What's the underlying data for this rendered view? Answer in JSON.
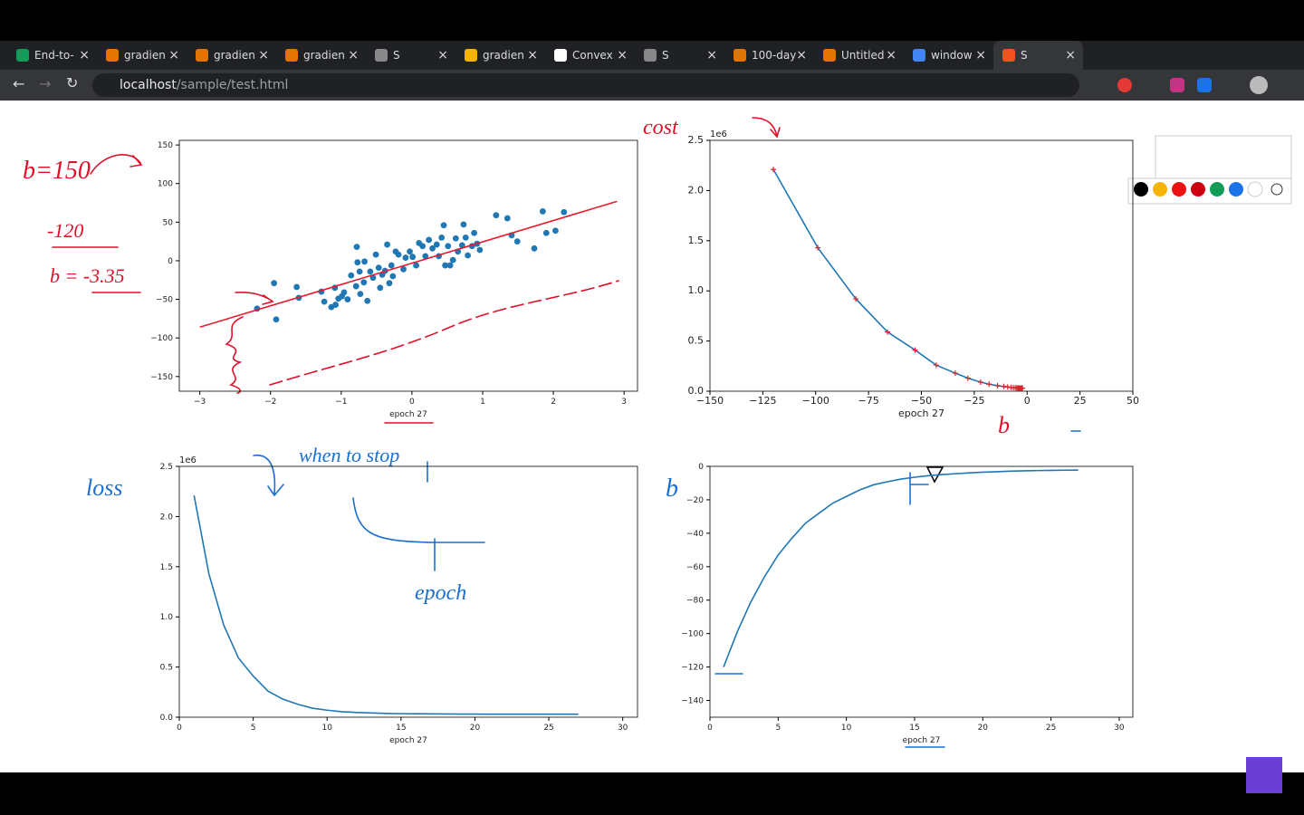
{
  "browser": {
    "tabs": [
      "End-to-",
      "gradien",
      "gradien",
      "gradien",
      "S",
      "gradien",
      "Convex",
      "S",
      "100-day",
      "Untitled",
      "window",
      "S"
    ],
    "url_host": "localhost",
    "url_path": "/sample/test.html"
  },
  "annotations": [
    {
      "text": "b=150",
      "color": "#e0102a"
    },
    {
      "text": "-120",
      "color": "#e0102a"
    },
    {
      "text": "b = -3.35",
      "color": "#e0102a"
    },
    {
      "text": "cost",
      "color": "#e0102a"
    },
    {
      "text": "loss",
      "color": "#1a6fd1"
    },
    {
      "text": "when to stop",
      "color": "#1a6fd1"
    },
    {
      "text": "epoch",
      "color": "#1a6fd1"
    },
    {
      "text": "b",
      "color": "#e0102a"
    },
    {
      "text": "b",
      "color": "#1a6fd1"
    }
  ],
  "chart_data": [
    {
      "type": "scatter",
      "xlabel": "epoch 27",
      "xlim": [
        -3.29,
        3.19
      ],
      "ylim": [
        -169,
        156
      ],
      "xticks": [
        {
          "value": -3,
          "label": "−3"
        },
        {
          "value": -2,
          "label": "−2"
        },
        {
          "value": -1,
          "label": "−1"
        },
        0,
        1,
        2,
        3
      ],
      "yticks": [
        {
          "value": -150,
          "label": "−150"
        },
        {
          "value": -100,
          "label": "−100"
        },
        {
          "value": -50,
          "label": "−50"
        },
        0,
        50,
        100,
        150
      ],
      "series": [
        {
          "color": "#1f77b4",
          "marker": "circle",
          "line": false,
          "x": [
            -1.95,
            -1.92,
            -1.63,
            -1.6,
            -1.28,
            -1.24,
            -1.14,
            -1.09,
            -1.08,
            -1.04,
            -0.99,
            -0.96,
            -0.91,
            -0.86,
            -0.78,
            -0.77,
            -0.79,
            -0.74,
            -0.73,
            -0.68,
            -0.67,
            -0.63,
            -0.59,
            -0.55,
            -0.51,
            -0.47,
            -0.45,
            -0.42,
            -0.38,
            -0.35,
            -0.32,
            -0.29,
            -0.27,
            -0.23,
            -0.19,
            -0.12,
            -0.09,
            -0.03,
            0.01,
            0.06,
            0.1,
            0.15,
            0.19,
            0.24,
            0.29,
            0.35,
            0.38,
            0.42,
            0.45,
            0.47,
            0.51,
            0.54,
            0.58,
            0.62,
            0.65,
            0.71,
            0.73,
            0.76,
            0.79,
            0.85,
            0.88,
            0.92,
            0.96,
            1.19,
            1.35,
            1.41,
            1.49,
            1.73,
            1.85,
            1.9,
            2.03,
            2.15,
            -2.19
          ],
          "values": [
            -29,
            -76,
            -34,
            -48,
            -40,
            -53,
            -60,
            -35,
            -57,
            -49,
            -46,
            -41,
            -50,
            -19,
            18,
            -2,
            -33,
            -14,
            -43,
            -28,
            -1,
            -52,
            -14,
            -22,
            8,
            -9,
            -35,
            -18,
            -13,
            21,
            -29,
            -6,
            -20,
            12,
            8,
            -11,
            4,
            12,
            5,
            -6,
            23,
            19,
            6,
            27,
            16,
            21,
            6,
            30,
            46,
            -6,
            19,
            -6,
            1,
            29,
            12,
            20,
            47,
            30,
            7,
            19,
            36,
            22,
            14,
            59,
            55,
            33,
            25,
            16,
            64,
            36,
            39,
            63,
            -62
          ]
        },
        {
          "color": "#e8192c",
          "marker": "none",
          "line": true,
          "x": [
            -3,
            2.9
          ],
          "values": [
            -86,
            77
          ]
        }
      ]
    },
    {
      "type": "line",
      "xlabel": "epoch 27",
      "y_offset_label": "1e6",
      "xlim": [
        -150,
        50
      ],
      "ylim": [
        0,
        2.5
      ],
      "xticks": [
        {
          "value": -150,
          "label": "−150"
        },
        {
          "value": -125,
          "label": "−125"
        },
        {
          "value": -100,
          "label": "−100"
        },
        {
          "value": -75,
          "label": "−75"
        },
        {
          "value": -50,
          "label": "−50"
        },
        {
          "value": -25,
          "label": "−25"
        },
        0,
        25,
        50
      ],
      "yticks": [
        {
          "value": 0,
          "label": "0.0"
        },
        0.5,
        {
          "value": 1,
          "label": "1.0"
        },
        1.5,
        {
          "value": 2,
          "label": "2.0"
        },
        2.5
      ],
      "series": [
        {
          "color": "#1f77b4",
          "marker": "plus",
          "marker_color": "#d62728",
          "line": true,
          "x": [
            -120,
            -99,
            -81,
            -66,
            -53,
            -43,
            -34,
            -28,
            -22,
            -18,
            -14,
            -11,
            -9.2,
            -7.6,
            -6.5,
            -5.6,
            -4.9,
            -4.4,
            -3.9,
            -3.5,
            -3.2,
            -2.9,
            -2.7,
            -2.5,
            -2.4,
            -2.3,
            -2.2
          ],
          "values": [
            2.21,
            1.43,
            0.92,
            0.59,
            0.41,
            0.26,
            0.18,
            0.13,
            0.09,
            0.07,
            0.055,
            0.047,
            0.042,
            0.038,
            0.035,
            0.034,
            0.033,
            0.032,
            0.031,
            0.031,
            0.03,
            0.03,
            0.03,
            0.03,
            0.03,
            0.03,
            0.03
          ]
        }
      ]
    },
    {
      "type": "line",
      "xlabel": "epoch 27",
      "y_offset_label": "1e6",
      "xlim": [
        0,
        31
      ],
      "ylim": [
        0,
        2.5
      ],
      "xticks": [
        0,
        5,
        10,
        15,
        20,
        25,
        30
      ],
      "yticks": [
        {
          "value": 0,
          "label": "0.0"
        },
        0.5,
        {
          "value": 1,
          "label": "1.0"
        },
        1.5,
        {
          "value": 2,
          "label": "2.0"
        },
        2.5
      ],
      "series": [
        {
          "color": "#1f77b4",
          "marker": "none",
          "line": true,
          "x": [
            1,
            2,
            3,
            4,
            5,
            6,
            7,
            8,
            9,
            10,
            11,
            12,
            13,
            14,
            15,
            16,
            17,
            18,
            19,
            20,
            21,
            22,
            23,
            24,
            25,
            26,
            27
          ],
          "values": [
            2.21,
            1.43,
            0.92,
            0.59,
            0.41,
            0.26,
            0.18,
            0.13,
            0.09,
            0.07,
            0.055,
            0.047,
            0.042,
            0.038,
            0.035,
            0.034,
            0.033,
            0.032,
            0.031,
            0.031,
            0.03,
            0.03,
            0.03,
            0.03,
            0.03,
            0.03,
            0.03
          ]
        }
      ]
    },
    {
      "type": "line",
      "xlabel": "epoch 27",
      "xlim": [
        0,
        31
      ],
      "ylim": [
        -150,
        0
      ],
      "xticks": [
        0,
        5,
        10,
        15,
        20,
        25,
        30
      ],
      "yticks": [
        0,
        {
          "value": -20,
          "label": "−20"
        },
        {
          "value": -40,
          "label": "−40"
        },
        {
          "value": -60,
          "label": "−60"
        },
        {
          "value": -80,
          "label": "−80"
        },
        {
          "value": -100,
          "label": "−100"
        },
        {
          "value": -120,
          "label": "−120"
        },
        {
          "value": -140,
          "label": "−140"
        }
      ],
      "series": [
        {
          "color": "#1f77b4",
          "marker": "none",
          "line": true,
          "x": [
            1,
            2,
            3,
            4,
            5,
            6,
            7,
            8,
            9,
            10,
            11,
            12,
            13,
            14,
            15,
            16,
            17,
            18,
            19,
            20,
            21,
            22,
            23,
            24,
            25,
            26,
            27
          ],
          "values": [
            -120,
            -99,
            -81,
            -66,
            -53,
            -43,
            -34,
            -28,
            -22,
            -18,
            -14,
            -11,
            -9.2,
            -7.6,
            -6.5,
            -5.6,
            -4.9,
            -4.4,
            -3.9,
            -3.5,
            -3.2,
            -2.9,
            -2.7,
            -2.5,
            -2.4,
            -2.3,
            -2.2
          ]
        }
      ]
    }
  ]
}
